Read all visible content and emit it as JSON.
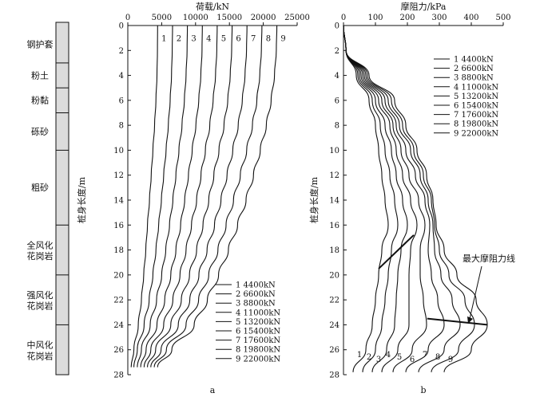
{
  "strata": [
    {
      "label": "钢护套",
      "depth_top": 0,
      "depth_bottom": 3
    },
    {
      "label": "粉土",
      "depth_top": 3,
      "depth_bottom": 5
    },
    {
      "label": "粉黏",
      "depth_top": 5,
      "depth_bottom": 7
    },
    {
      "label": "砾砂",
      "depth_top": 7,
      "depth_bottom": 10
    },
    {
      "label": "粗砂",
      "depth_top": 10,
      "depth_bottom": 16
    },
    {
      "label": "全风化花岗岩",
      "depth_top": 16,
      "depth_bottom": 20
    },
    {
      "label": "强风化花岗岩",
      "depth_top": 20,
      "depth_bottom": 24
    },
    {
      "label": "中风化花岗岩",
      "depth_top": 24,
      "depth_bottom": 28
    }
  ],
  "chart_data": [
    {
      "type": "line",
      "panel": "a",
      "xlabel": "荷载/kN",
      "ylabel": "桩身长度/m",
      "xlim": [
        0,
        25000
      ],
      "ylim": [
        0,
        28
      ],
      "xticks": [
        0,
        5000,
        10000,
        15000,
        20000,
        25000
      ],
      "yticks": [
        0,
        2,
        4,
        6,
        8,
        10,
        12,
        14,
        16,
        18,
        20,
        22,
        24,
        26,
        28
      ],
      "y_inverted": true,
      "x_axis_position": "top",
      "grid": false,
      "legend_position": "bottom-right",
      "depth_points": [
        0,
        2,
        4,
        6,
        8,
        10,
        12,
        14,
        16,
        18,
        20,
        22,
        24,
        26,
        27.4
      ],
      "curve_labels": [
        "1",
        "2",
        "3",
        "4",
        "5",
        "6",
        "7",
        "8",
        "9"
      ],
      "series": [
        {
          "name": "1 4400kN",
          "values": [
            4400,
            4380,
            4300,
            4150,
            3950,
            3700,
            3450,
            3200,
            2900,
            2650,
            2350,
            2000,
            1550,
            900,
            500
          ]
        },
        {
          "name": "2 6600kN",
          "values": [
            6600,
            6560,
            6450,
            6250,
            5980,
            5650,
            5300,
            4950,
            4550,
            4150,
            3700,
            3150,
            2400,
            1400,
            900
          ]
        },
        {
          "name": "3 8800kN",
          "values": [
            8800,
            8750,
            8600,
            8350,
            8000,
            7550,
            7100,
            6650,
            6150,
            5600,
            5000,
            4250,
            3300,
            2000,
            1400
          ]
        },
        {
          "name": "4 11000kN",
          "values": [
            11000,
            10950,
            10780,
            10470,
            10050,
            9500,
            8950,
            8400,
            7800,
            7100,
            6350,
            5450,
            4300,
            2700,
            1900
          ]
        },
        {
          "name": "5 13200kN",
          "values": [
            13200,
            13140,
            12950,
            12600,
            12100,
            11450,
            10800,
            10150,
            9400,
            8600,
            7700,
            6650,
            5300,
            3400,
            2400
          ]
        },
        {
          "name": "6 15400kN",
          "values": [
            15400,
            15330,
            15120,
            14750,
            14200,
            13450,
            12700,
            11950,
            11100,
            10150,
            9100,
            7900,
            6350,
            4100,
            2900
          ]
        },
        {
          "name": "7 17600kN",
          "values": [
            17600,
            17520,
            17300,
            16900,
            16300,
            15500,
            14650,
            13750,
            12800,
            11700,
            10500,
            9150,
            7450,
            4900,
            3400
          ]
        },
        {
          "name": "8 19800kN",
          "values": [
            19800,
            19720,
            19480,
            19050,
            18400,
            17550,
            16600,
            15600,
            14500,
            13300,
            11950,
            10450,
            8600,
            5700,
            3900
          ]
        },
        {
          "name": "9 22000kN",
          "values": [
            22000,
            21920,
            21650,
            21150,
            20450,
            19550,
            18550,
            17450,
            16200,
            14850,
            13400,
            11750,
            9800,
            6500,
            4400
          ]
        }
      ],
      "subplot_label": "a"
    },
    {
      "type": "line",
      "panel": "b",
      "xlabel": "摩阻力/kPa",
      "ylabel": "桩身长度/m",
      "xlim": [
        0,
        500
      ],
      "ylim": [
        0,
        28
      ],
      "xticks": [
        0,
        100,
        200,
        300,
        400,
        500
      ],
      "yticks": [
        0,
        2,
        4,
        6,
        8,
        10,
        12,
        14,
        16,
        18,
        20,
        22,
        24,
        26,
        28
      ],
      "y_inverted": true,
      "x_axis_position": "top",
      "grid": false,
      "legend_position": "top-right",
      "curve_labels": [
        "1",
        "2",
        "3",
        "4",
        "5",
        "6",
        "7",
        "8",
        "9"
      ],
      "series": [
        {
          "name": "1 4400kN",
          "points": [
            [
              0,
              0
            ],
            [
              8,
              2
            ],
            [
              40,
              4
            ],
            [
              80,
              6
            ],
            [
              100,
              8
            ],
            [
              110,
              10
            ],
            [
              120,
              12
            ],
            [
              130,
              14
            ],
            [
              140,
              16
            ],
            [
              120,
              18
            ],
            [
              110,
              20
            ],
            [
              100,
              22
            ],
            [
              90,
              24
            ],
            [
              70,
              26
            ],
            [
              30,
              27.8
            ]
          ]
        },
        {
          "name": "2 6600kN",
          "points": [
            [
              0,
              0
            ],
            [
              8,
              2
            ],
            [
              45,
              4
            ],
            [
              90,
              6
            ],
            [
              115,
              8
            ],
            [
              130,
              10
            ],
            [
              145,
              12
            ],
            [
              160,
              14
            ],
            [
              170,
              16
            ],
            [
              150,
              18
            ],
            [
              140,
              20
            ],
            [
              130,
              22
            ],
            [
              120,
              24
            ],
            [
              100,
              26
            ],
            [
              60,
              27.8
            ]
          ]
        },
        {
          "name": "3 8800kN",
          "points": [
            [
              0,
              0
            ],
            [
              8,
              2
            ],
            [
              50,
              4
            ],
            [
              100,
              6
            ],
            [
              130,
              8
            ],
            [
              150,
              10
            ],
            [
              165,
              12
            ],
            [
              185,
              14
            ],
            [
              200,
              16
            ],
            [
              180,
              18
            ],
            [
              170,
              20
            ],
            [
              165,
              22
            ],
            [
              160,
              24
            ],
            [
              135,
              26
            ],
            [
              90,
              27.8
            ]
          ]
        },
        {
          "name": "4 11000kN",
          "points": [
            [
              0,
              0
            ],
            [
              8,
              2
            ],
            [
              55,
              4
            ],
            [
              110,
              6
            ],
            [
              145,
              8
            ],
            [
              165,
              10
            ],
            [
              185,
              12
            ],
            [
              210,
              14
            ],
            [
              230,
              16
            ],
            [
              210,
              18
            ],
            [
              205,
              20
            ],
            [
              205,
              22
            ],
            [
              205,
              24
            ],
            [
              170,
              26
            ],
            [
              120,
              27.8
            ]
          ]
        },
        {
          "name": "5 13200kN",
          "points": [
            [
              0,
              0
            ],
            [
              8,
              2
            ],
            [
              60,
              4
            ],
            [
              120,
              6
            ],
            [
              155,
              8
            ],
            [
              180,
              10
            ],
            [
              205,
              12
            ],
            [
              235,
              14
            ],
            [
              255,
              16
            ],
            [
              240,
              18
            ],
            [
              240,
              20
            ],
            [
              250,
              22
            ],
            [
              260,
              24
            ],
            [
              215,
              26
            ],
            [
              155,
              27.8
            ]
          ]
        },
        {
          "name": "6 15400kN",
          "points": [
            [
              0,
              0
            ],
            [
              8,
              2
            ],
            [
              65,
              4
            ],
            [
              130,
              6
            ],
            [
              165,
              8
            ],
            [
              195,
              10
            ],
            [
              225,
              12
            ],
            [
              255,
              14
            ],
            [
              270,
              16
            ],
            [
              265,
              18
            ],
            [
              275,
              20
            ],
            [
              295,
              22
            ],
            [
              315,
              24
            ],
            [
              265,
              26
            ],
            [
              195,
              27.8
            ]
          ]
        },
        {
          "name": "7 17600kN",
          "points": [
            [
              0,
              0
            ],
            [
              8,
              2
            ],
            [
              70,
              4
            ],
            [
              140,
              6
            ],
            [
              175,
              8
            ],
            [
              210,
              10
            ],
            [
              240,
              12
            ],
            [
              265,
              14
            ],
            [
              280,
              16
            ],
            [
              285,
              18
            ],
            [
              305,
              20
            ],
            [
              340,
              22
            ],
            [
              365,
              24
            ],
            [
              315,
              26
            ],
            [
              235,
              27.8
            ]
          ]
        },
        {
          "name": "8 19800kN",
          "points": [
            [
              0,
              0
            ],
            [
              8,
              2
            ],
            [
              75,
              4
            ],
            [
              150,
              6
            ],
            [
              185,
              8
            ],
            [
              220,
              10
            ],
            [
              250,
              12
            ],
            [
              275,
              14
            ],
            [
              285,
              16
            ],
            [
              300,
              18
            ],
            [
              330,
              20
            ],
            [
              380,
              22
            ],
            [
              410,
              24
            ],
            [
              360,
              26
            ],
            [
              275,
              27.8
            ]
          ]
        },
        {
          "name": "9 22000kN",
          "points": [
            [
              0,
              0
            ],
            [
              8,
              2
            ],
            [
              80,
              4
            ],
            [
              160,
              6
            ],
            [
              195,
              8
            ],
            [
              230,
              10
            ],
            [
              260,
              12
            ],
            [
              280,
              14
            ],
            [
              290,
              16
            ],
            [
              315,
              18
            ],
            [
              355,
              20
            ],
            [
              415,
              22
            ],
            [
              450,
              24
            ],
            [
              400,
              26
            ],
            [
              315,
              27.8
            ]
          ]
        }
      ],
      "max_friction_lines": [
        {
          "points": [
            [
              110,
              19.5
            ],
            [
              220,
              16.8
            ]
          ]
        },
        {
          "points": [
            [
              262,
              23.5
            ],
            [
              450,
              24.0
            ]
          ]
        }
      ],
      "annotation": {
        "text": "最大摩阻力线",
        "arrow_to": [
          390,
          23.9
        ]
      },
      "subplot_label": "b"
    }
  ]
}
